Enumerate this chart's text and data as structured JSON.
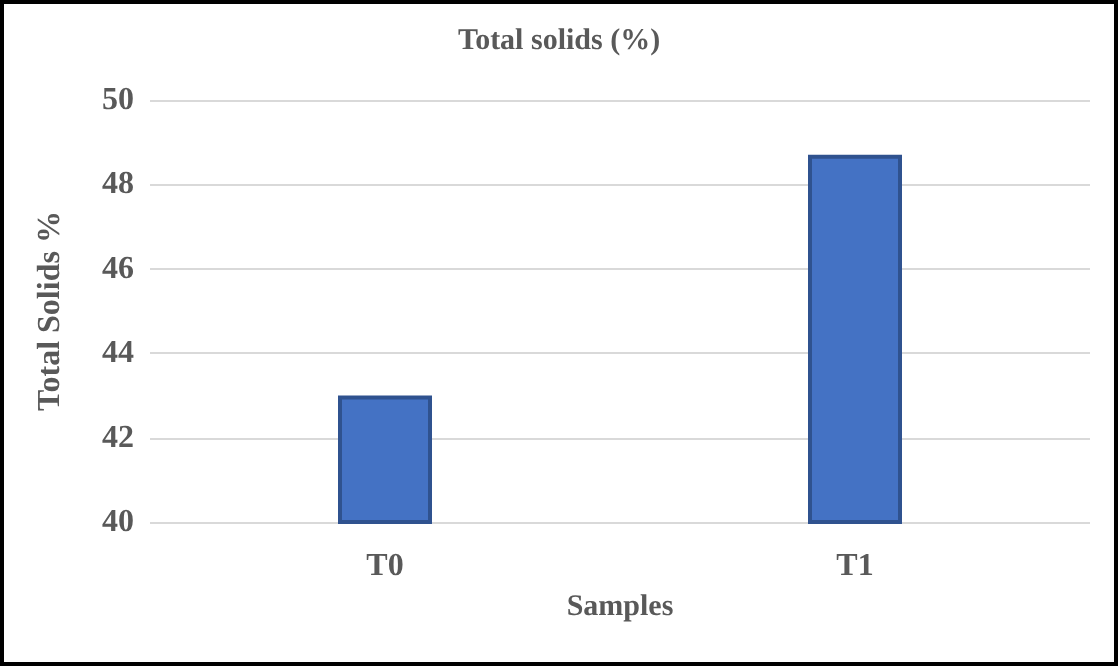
{
  "chart_data": {
    "type": "bar",
    "title": "Total solids (%)",
    "xlabel": "Samples",
    "ylabel": "Total Solids %",
    "categories": [
      "T0",
      "T1"
    ],
    "values": [
      43.0,
      48.7
    ],
    "color": "#4472c4",
    "ylim": [
      40,
      50
    ],
    "yticks": [
      40,
      42,
      44,
      46,
      48,
      50
    ],
    "grid": "y"
  }
}
